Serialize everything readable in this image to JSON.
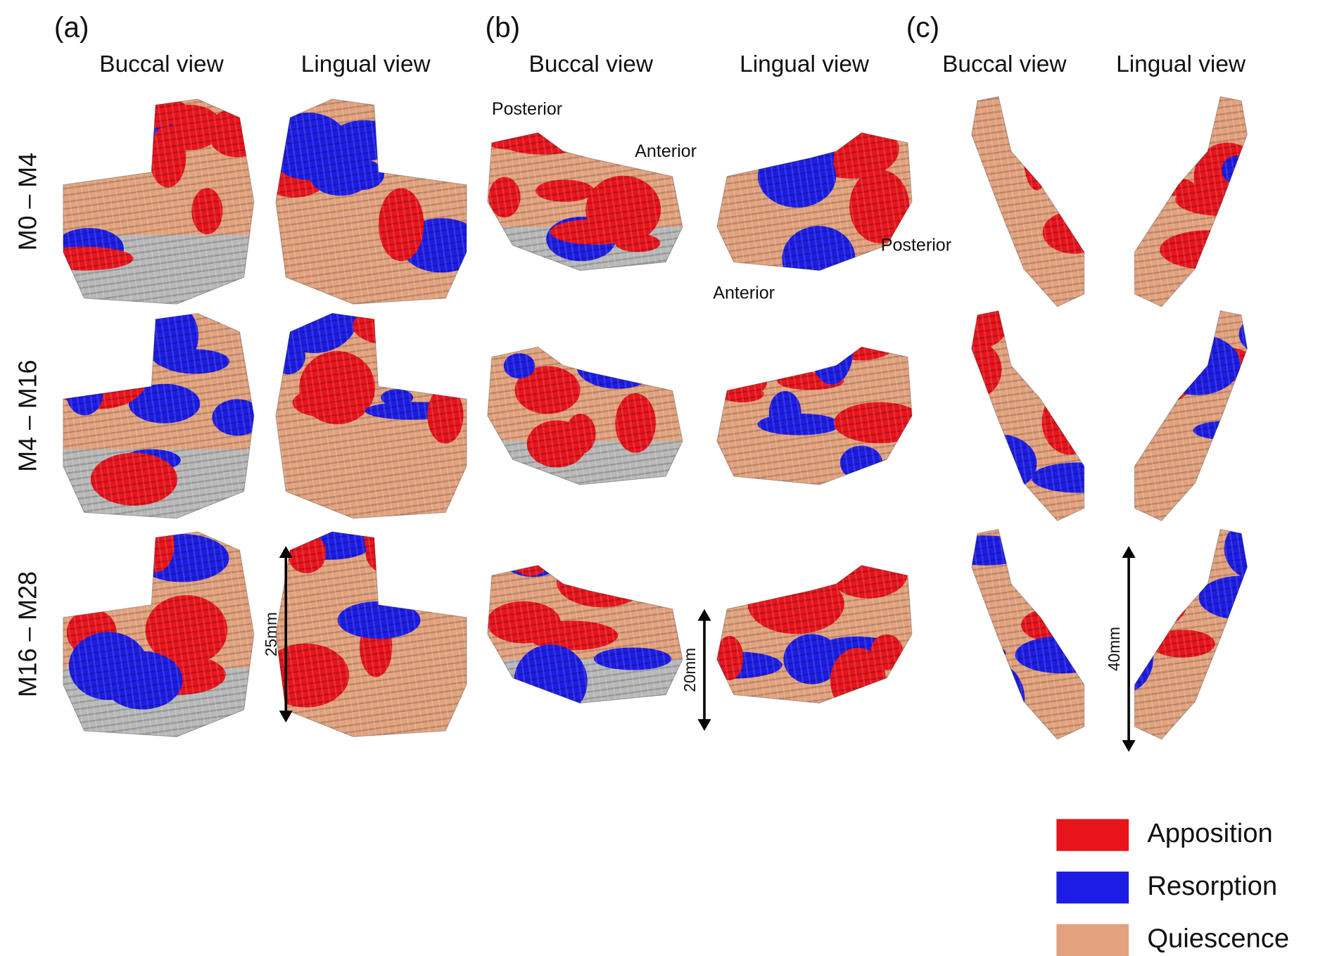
{
  "panels": [
    {
      "label": "(a)",
      "views": [
        "Buccal view",
        "Lingual view"
      ]
    },
    {
      "label": "(b)",
      "views": [
        "Buccal view",
        "Lingual view"
      ]
    },
    {
      "label": "(c)",
      "views": [
        "Buccal view",
        "Lingual view"
      ]
    }
  ],
  "rows": [
    "M0 – M4",
    "M4 – M16",
    "M16 – M28"
  ],
  "annotations": [
    "Posterior",
    "Anterior",
    "Posterior",
    "Anterior"
  ],
  "scale_bars": [
    "25mm",
    "20mm",
    "40mm"
  ],
  "legend": [
    {
      "label": "Apposition",
      "color": "#e8141c"
    },
    {
      "label": "Resorption",
      "color": "#1c1ce4"
    },
    {
      "label": "Quiescence",
      "color": "#e2a27e"
    }
  ]
}
